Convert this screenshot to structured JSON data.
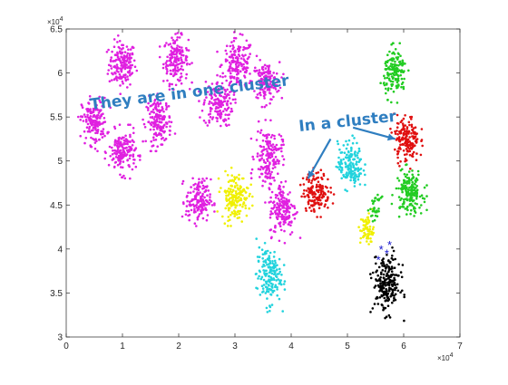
{
  "chart_data": {
    "type": "scatter",
    "xlabel": "",
    "ylabel": "",
    "xlim": [
      0,
      70000
    ],
    "ylim": [
      30000,
      65000
    ],
    "x_ticks": [
      0,
      10000,
      20000,
      30000,
      40000,
      50000,
      60000,
      70000
    ],
    "x_tick_labels": [
      "0",
      "1",
      "2",
      "3",
      "4",
      "5",
      "6",
      "7"
    ],
    "y_ticks": [
      30000,
      35000,
      40000,
      45000,
      50000,
      55000,
      60000,
      65000
    ],
    "y_tick_labels": [
      "3",
      "3.5",
      "4",
      "4.5",
      "5",
      "5.5",
      "6",
      "6.5"
    ],
    "x_exponent": "×10",
    "x_exponent_power": "4",
    "y_exponent": "×10",
    "y_exponent_power": "4",
    "grid": false,
    "colors": {
      "magenta": "#e020e0",
      "yellow": "#f0f000",
      "cyan": "#22d3dd",
      "red": "#e01010",
      "green": "#22cc22",
      "black": "#000000",
      "blue": "#1010cc",
      "annotation": "#2f7ec0"
    },
    "clusters": [
      {
        "color": "magenta",
        "cx": 10000,
        "cy": 61000,
        "sx": 1200,
        "sy": 1300,
        "n": 170
      },
      {
        "color": "magenta",
        "cx": 19500,
        "cy": 61500,
        "sx": 1100,
        "sy": 1300,
        "n": 170
      },
      {
        "color": "magenta",
        "cx": 30500,
        "cy": 61000,
        "sx": 1400,
        "sy": 1400,
        "n": 170
      },
      {
        "color": "magenta",
        "cx": 35500,
        "cy": 59000,
        "sx": 1200,
        "sy": 1100,
        "n": 150
      },
      {
        "color": "magenta",
        "cx": 27000,
        "cy": 56500,
        "sx": 1300,
        "sy": 1300,
        "n": 160
      },
      {
        "color": "magenta",
        "cx": 5000,
        "cy": 54500,
        "sx": 1100,
        "sy": 1300,
        "n": 170
      },
      {
        "color": "magenta",
        "cx": 16500,
        "cy": 54500,
        "sx": 1100,
        "sy": 1300,
        "n": 170
      },
      {
        "color": "magenta",
        "cx": 10000,
        "cy": 51000,
        "sx": 1200,
        "sy": 1200,
        "n": 170
      },
      {
        "color": "magenta",
        "cx": 36000,
        "cy": 50500,
        "sx": 1200,
        "sy": 1600,
        "n": 170
      },
      {
        "color": "magenta",
        "cx": 23500,
        "cy": 45500,
        "sx": 1100,
        "sy": 1200,
        "n": 160
      },
      {
        "color": "magenta",
        "cx": 38500,
        "cy": 44500,
        "sx": 1200,
        "sy": 1500,
        "n": 170
      },
      {
        "color": "yellow",
        "cx": 30000,
        "cy": 46000,
        "sx": 1200,
        "sy": 1300,
        "n": 170
      },
      {
        "color": "yellow",
        "cx": 53500,
        "cy": 42200,
        "sx": 600,
        "sy": 900,
        "n": 70
      },
      {
        "color": "cyan",
        "cx": 36000,
        "cy": 37000,
        "sx": 1100,
        "sy": 1600,
        "n": 170
      },
      {
        "color": "cyan",
        "cx": 50500,
        "cy": 49500,
        "sx": 1100,
        "sy": 1300,
        "n": 160
      },
      {
        "color": "red",
        "cx": 44500,
        "cy": 46500,
        "sx": 1200,
        "sy": 1100,
        "n": 160
      },
      {
        "color": "red",
        "cx": 60500,
        "cy": 52500,
        "sx": 1100,
        "sy": 1300,
        "n": 170
      },
      {
        "color": "green",
        "cx": 58500,
        "cy": 60000,
        "sx": 1000,
        "sy": 1300,
        "n": 150
      },
      {
        "color": "green",
        "cx": 61000,
        "cy": 46500,
        "sx": 1200,
        "sy": 1200,
        "n": 170
      },
      {
        "color": "green",
        "cx": 55000,
        "cy": 44500,
        "sx": 500,
        "sy": 700,
        "n": 30
      },
      {
        "color": "black",
        "cx": 57000,
        "cy": 36000,
        "sx": 1200,
        "sy": 1600,
        "n": 220
      }
    ],
    "special_points": {
      "marker": "*",
      "color": "blue",
      "x": [
        56000,
        57000,
        57500,
        55500
      ],
      "y": [
        40000,
        39500,
        40500,
        38800
      ]
    },
    "annotations": [
      {
        "text": "They are in one cluster",
        "x": 17000,
        "y": 56500
      },
      {
        "text": "In a cluster",
        "x": 49000,
        "y": 54000
      }
    ],
    "arrows": [
      {
        "from_x": 47000,
        "from_y": 52500,
        "to_x": 43000,
        "to_y": 48000
      },
      {
        "from_x": 51000,
        "from_y": 53800,
        "to_x": 58500,
        "to_y": 52500
      }
    ]
  }
}
